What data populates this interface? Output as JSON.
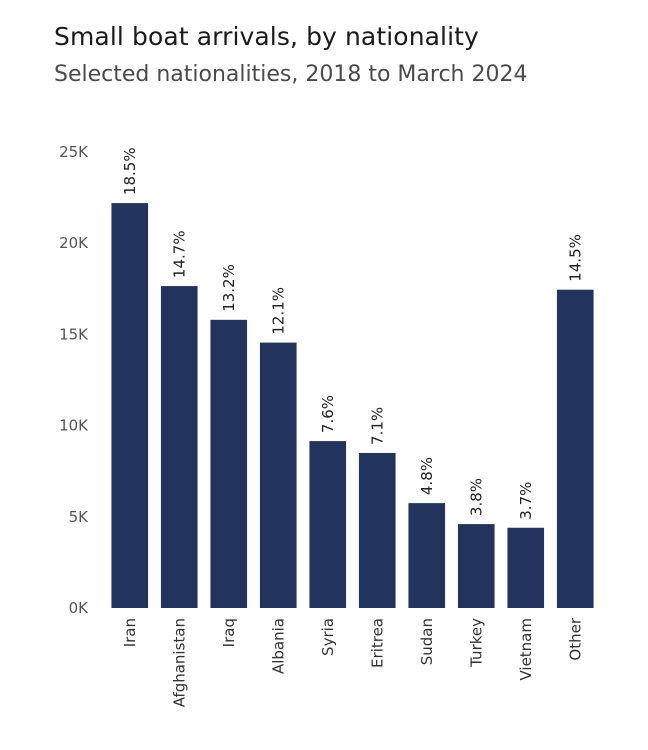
{
  "title": "Small boat arrivals, by nationality",
  "subtitle": "Selected nationalities, 2018 to March 2024",
  "chart_data": {
    "type": "bar",
    "title": "Small boat arrivals, by nationality",
    "subtitle": "Selected nationalities, 2018 to March 2024",
    "categories": [
      "Iran",
      "Afghanistan",
      "Iraq",
      "Albania",
      "Syria",
      "Eritrea",
      "Sudan",
      "Turkey",
      "Vietnam",
      "Other"
    ],
    "values": [
      22200,
      17650,
      15800,
      14550,
      9150,
      8500,
      5750,
      4600,
      4400,
      17450
    ],
    "data_labels": [
      "18.5%",
      "14.7%",
      "13.2%",
      "12.1%",
      "7.6%",
      "7.1%",
      "4.8%",
      "3.8%",
      "3.7%",
      "14.5%"
    ],
    "ylim": [
      0,
      25000
    ],
    "yticks": [
      0,
      5000,
      10000,
      15000,
      20000,
      25000
    ],
    "ytick_labels": [
      "0K",
      "5K",
      "10K",
      "15K",
      "20K",
      "25K"
    ],
    "xlabel": "",
    "ylabel": "",
    "grid": false,
    "bar_color": "#22335e"
  }
}
